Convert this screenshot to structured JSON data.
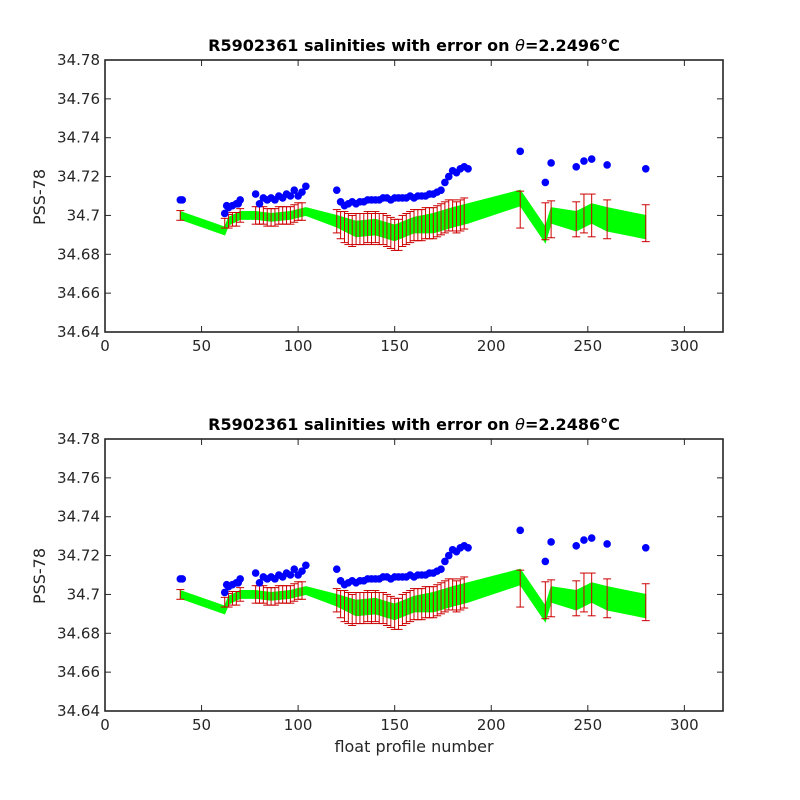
{
  "chart_data": [
    {
      "type": "scatter",
      "title_prefix": "R5902361 salinities with error on ",
      "title_theta": "θ",
      "title_value": "=2.2496",
      "title_unit": "°C",
      "xlabel": "",
      "ylabel": "PSS-78",
      "xlim": [
        0,
        320
      ],
      "ylim": [
        34.64,
        34.78
      ],
      "xticks": [
        0,
        50,
        100,
        150,
        200,
        250,
        300
      ],
      "yticks": [
        34.64,
        34.66,
        34.68,
        34.7,
        34.72,
        34.74,
        34.76,
        34.78
      ],
      "ytick_labels": [
        "34.64",
        "34.66",
        "34.68",
        "34.7",
        "34.72",
        "34.74",
        "34.76",
        "34.78"
      ],
      "grid": false,
      "colors": {
        "raw": "#0000ff",
        "mapped": "#00ff00",
        "error": "#cc0000"
      },
      "series": [
        {
          "role": "raw salinity",
          "x": [
            39,
            40,
            62,
            63,
            64,
            66,
            68,
            69,
            70,
            78,
            80,
            82,
            84,
            86,
            88,
            90,
            92,
            94,
            96,
            98,
            100,
            102,
            104,
            120,
            122,
            124,
            126,
            128,
            130,
            132,
            134,
            136,
            138,
            140,
            142,
            144,
            146,
            148,
            150,
            152,
            154,
            156,
            158,
            160,
            162,
            164,
            166,
            168,
            170,
            172,
            174,
            176,
            178,
            180,
            182,
            184,
            186,
            188,
            215,
            228,
            231,
            244,
            248,
            252,
            260,
            280
          ],
          "y": [
            34.708,
            34.708,
            34.701,
            34.705,
            34.704,
            34.705,
            34.706,
            34.706,
            34.708,
            34.711,
            34.706,
            34.709,
            34.708,
            34.709,
            34.708,
            34.71,
            34.709,
            34.711,
            34.71,
            34.713,
            34.71,
            34.712,
            34.715,
            34.713,
            34.707,
            34.705,
            34.706,
            34.707,
            34.706,
            34.707,
            34.707,
            34.708,
            34.708,
            34.708,
            34.708,
            34.709,
            34.709,
            34.708,
            34.709,
            34.709,
            34.709,
            34.709,
            34.71,
            34.709,
            34.71,
            34.71,
            34.71,
            34.711,
            34.711,
            34.712,
            34.713,
            34.717,
            34.72,
            34.723,
            34.722,
            34.724,
            34.725,
            34.724,
            34.733,
            34.717,
            34.727,
            34.725,
            34.728,
            34.729,
            34.726,
            34.724
          ]
        },
        {
          "role": "mapped salinity",
          "x": [
            39,
            62,
            64,
            70,
            78,
            86,
            96,
            104,
            120,
            130,
            140,
            150,
            160,
            170,
            180,
            188,
            215,
            228,
            231,
            244,
            252,
            260,
            280
          ],
          "y": [
            34.7,
            34.692,
            34.697,
            34.7,
            34.7,
            34.699,
            34.7,
            34.702,
            34.697,
            34.693,
            34.694,
            34.691,
            34.695,
            34.696,
            34.699,
            34.701,
            34.709,
            34.69,
            34.7,
            34.697,
            34.701,
            34.698,
            34.694
          ],
          "band_halfwidth": [
            0.002,
            0.002,
            0.002,
            0.002,
            0.002,
            0.002,
            0.002,
            0.002,
            0.003,
            0.004,
            0.004,
            0.004,
            0.004,
            0.005,
            0.005,
            0.005,
            0.004,
            0.004,
            0.004,
            0.005,
            0.005,
            0.006,
            0.006
          ],
          "error_x": [
            39,
            62,
            64,
            66,
            68,
            70,
            78,
            80,
            82,
            84,
            86,
            88,
            90,
            92,
            94,
            96,
            98,
            100,
            102,
            120,
            122,
            124,
            126,
            128,
            130,
            132,
            134,
            136,
            138,
            140,
            142,
            144,
            146,
            148,
            150,
            152,
            154,
            156,
            158,
            160,
            162,
            164,
            166,
            168,
            170,
            172,
            174,
            176,
            178,
            180,
            182,
            184,
            186,
            215,
            228,
            231,
            244,
            248,
            252,
            260,
            280
          ],
          "error_y": [
            34.7,
            34.696,
            34.697,
            34.698,
            34.698,
            34.7,
            34.7,
            34.7,
            34.7,
            34.699,
            34.699,
            34.699,
            34.7,
            34.7,
            34.7,
            34.7,
            34.701,
            34.702,
            34.702,
            34.697,
            34.695,
            34.694,
            34.693,
            34.692,
            34.693,
            34.693,
            34.693,
            34.694,
            34.693,
            34.694,
            34.693,
            34.693,
            34.692,
            34.691,
            34.69,
            34.69,
            34.692,
            34.693,
            34.694,
            34.695,
            34.695,
            34.695,
            34.696,
            34.696,
            34.696,
            34.697,
            34.698,
            34.699,
            34.7,
            34.7,
            34.699,
            34.7,
            34.701,
            34.703,
            34.697,
            34.698,
            34.698,
            34.701,
            34.7,
            34.698,
            34.696
          ],
          "error_half": [
            0.0025,
            0.0025,
            0.0035,
            0.0035,
            0.0035,
            0.0035,
            0.0045,
            0.0045,
            0.0045,
            0.0045,
            0.0045,
            0.0045,
            0.0045,
            0.0045,
            0.0045,
            0.0045,
            0.0045,
            0.0045,
            0.0045,
            0.006,
            0.007,
            0.008,
            0.008,
            0.008,
            0.008,
            0.008,
            0.008,
            0.008,
            0.008,
            0.008,
            0.008,
            0.008,
            0.008,
            0.008,
            0.008,
            0.008,
            0.008,
            0.008,
            0.008,
            0.008,
            0.008,
            0.008,
            0.008,
            0.008,
            0.008,
            0.008,
            0.008,
            0.008,
            0.008,
            0.008,
            0.008,
            0.008,
            0.008,
            0.0095,
            0.0095,
            0.0095,
            0.009,
            0.01,
            0.011,
            0.01,
            0.0095
          ]
        }
      ]
    },
    {
      "type": "scatter",
      "title_prefix": "R5902361 salinities with error on ",
      "title_theta": "θ",
      "title_value": "=2.2486",
      "title_unit": "°C",
      "xlabel": "float profile number",
      "ylabel": "PSS-78",
      "xlim": [
        0,
        320
      ],
      "ylim": [
        34.64,
        34.78
      ],
      "xticks": [
        0,
        50,
        100,
        150,
        200,
        250,
        300
      ],
      "yticks": [
        34.64,
        34.66,
        34.68,
        34.7,
        34.72,
        34.74,
        34.76,
        34.78
      ],
      "ytick_labels": [
        "34.64",
        "34.66",
        "34.68",
        "34.7",
        "34.72",
        "34.74",
        "34.76",
        "34.78"
      ],
      "grid": false,
      "colors": {
        "raw": "#0000ff",
        "mapped": "#00ff00",
        "error": "#cc0000"
      },
      "series": [
        {
          "role": "raw salinity",
          "x": [
            39,
            40,
            62,
            63,
            64,
            66,
            68,
            69,
            70,
            78,
            80,
            82,
            84,
            86,
            88,
            90,
            92,
            94,
            96,
            98,
            100,
            102,
            104,
            120,
            122,
            124,
            126,
            128,
            130,
            132,
            134,
            136,
            138,
            140,
            142,
            144,
            146,
            148,
            150,
            152,
            154,
            156,
            158,
            160,
            162,
            164,
            166,
            168,
            170,
            172,
            174,
            176,
            178,
            180,
            182,
            184,
            186,
            188,
            215,
            228,
            231,
            244,
            248,
            252,
            260,
            280
          ],
          "y": [
            34.708,
            34.708,
            34.701,
            34.705,
            34.704,
            34.705,
            34.706,
            34.706,
            34.708,
            34.711,
            34.706,
            34.709,
            34.708,
            34.709,
            34.708,
            34.71,
            34.709,
            34.711,
            34.71,
            34.713,
            34.71,
            34.712,
            34.715,
            34.713,
            34.707,
            34.705,
            34.706,
            34.707,
            34.706,
            34.707,
            34.707,
            34.708,
            34.708,
            34.708,
            34.708,
            34.709,
            34.709,
            34.708,
            34.709,
            34.709,
            34.709,
            34.709,
            34.71,
            34.709,
            34.71,
            34.71,
            34.71,
            34.711,
            34.711,
            34.712,
            34.713,
            34.717,
            34.72,
            34.723,
            34.722,
            34.724,
            34.725,
            34.724,
            34.733,
            34.717,
            34.727,
            34.725,
            34.728,
            34.729,
            34.726,
            34.724
          ]
        },
        {
          "role": "mapped salinity",
          "x": [
            39,
            62,
            64,
            70,
            78,
            86,
            96,
            104,
            120,
            130,
            140,
            150,
            160,
            170,
            180,
            188,
            215,
            228,
            231,
            244,
            252,
            260,
            280
          ],
          "y": [
            34.7,
            34.692,
            34.697,
            34.7,
            34.7,
            34.699,
            34.7,
            34.702,
            34.697,
            34.693,
            34.694,
            34.691,
            34.695,
            34.696,
            34.699,
            34.701,
            34.709,
            34.69,
            34.7,
            34.697,
            34.701,
            34.698,
            34.694
          ],
          "band_halfwidth": [
            0.002,
            0.002,
            0.002,
            0.002,
            0.002,
            0.002,
            0.002,
            0.002,
            0.003,
            0.004,
            0.004,
            0.004,
            0.004,
            0.005,
            0.005,
            0.005,
            0.004,
            0.004,
            0.004,
            0.005,
            0.005,
            0.006,
            0.006
          ],
          "error_x": [
            39,
            62,
            64,
            66,
            68,
            70,
            78,
            80,
            82,
            84,
            86,
            88,
            90,
            92,
            94,
            96,
            98,
            100,
            102,
            120,
            122,
            124,
            126,
            128,
            130,
            132,
            134,
            136,
            138,
            140,
            142,
            144,
            146,
            148,
            150,
            152,
            154,
            156,
            158,
            160,
            162,
            164,
            166,
            168,
            170,
            172,
            174,
            176,
            178,
            180,
            182,
            184,
            186,
            215,
            228,
            231,
            244,
            248,
            252,
            260,
            280
          ],
          "error_y": [
            34.7,
            34.696,
            34.697,
            34.698,
            34.698,
            34.7,
            34.7,
            34.7,
            34.7,
            34.699,
            34.699,
            34.699,
            34.7,
            34.7,
            34.7,
            34.7,
            34.701,
            34.702,
            34.702,
            34.697,
            34.695,
            34.694,
            34.693,
            34.692,
            34.693,
            34.693,
            34.693,
            34.694,
            34.693,
            34.694,
            34.693,
            34.693,
            34.692,
            34.691,
            34.69,
            34.69,
            34.692,
            34.693,
            34.694,
            34.695,
            34.695,
            34.695,
            34.696,
            34.696,
            34.696,
            34.697,
            34.698,
            34.699,
            34.7,
            34.7,
            34.699,
            34.7,
            34.701,
            34.703,
            34.697,
            34.698,
            34.698,
            34.701,
            34.7,
            34.698,
            34.696
          ],
          "error_half": [
            0.0025,
            0.0025,
            0.0035,
            0.0035,
            0.0035,
            0.0035,
            0.0045,
            0.0045,
            0.0045,
            0.0045,
            0.0045,
            0.0045,
            0.0045,
            0.0045,
            0.0045,
            0.0045,
            0.0045,
            0.0045,
            0.0045,
            0.006,
            0.007,
            0.008,
            0.008,
            0.008,
            0.008,
            0.008,
            0.008,
            0.008,
            0.008,
            0.008,
            0.008,
            0.008,
            0.008,
            0.008,
            0.008,
            0.008,
            0.008,
            0.008,
            0.008,
            0.008,
            0.008,
            0.008,
            0.008,
            0.008,
            0.008,
            0.008,
            0.008,
            0.008,
            0.008,
            0.008,
            0.008,
            0.008,
            0.008,
            0.0095,
            0.0095,
            0.0095,
            0.009,
            0.01,
            0.011,
            0.01,
            0.0095
          ]
        }
      ]
    }
  ]
}
